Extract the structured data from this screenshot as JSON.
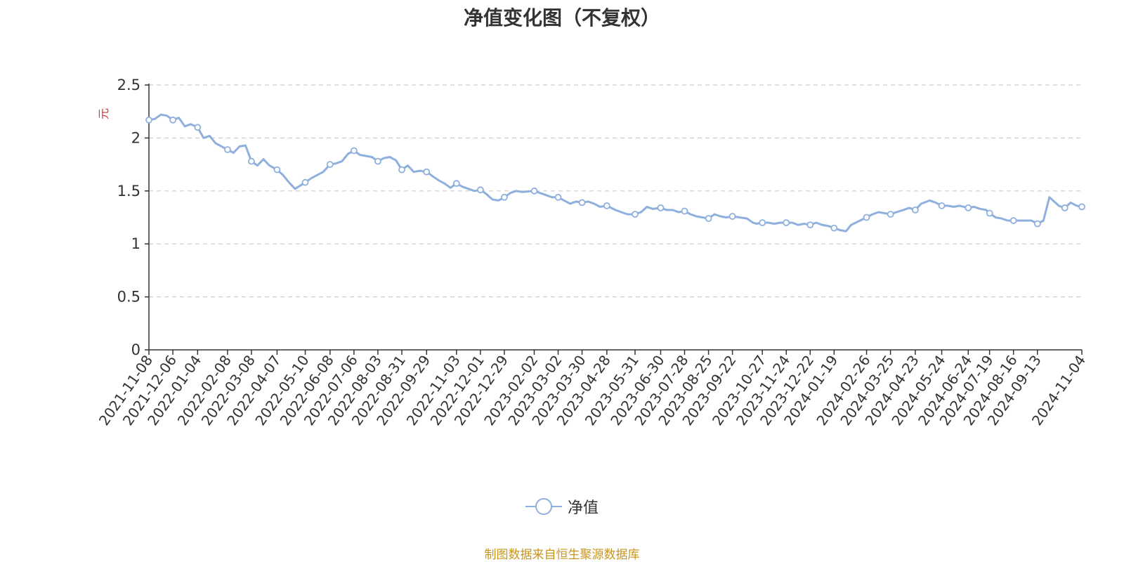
{
  "chart_data": {
    "type": "line",
    "title": "净值变化图（不复权）",
    "ylabel": "元",
    "ylim": [
      0,
      2.5
    ],
    "yticks": [
      "0",
      "0.5",
      "1",
      "1.5",
      "2",
      "2.5"
    ],
    "grid": true,
    "legend_position": "bottom",
    "x_tick_labels": [
      "2021-11-08",
      "2021-12-06",
      "2022-01-04",
      "2022-02-08",
      "2022-03-08",
      "2022-04-07",
      "2022-05-10",
      "2022-06-08",
      "2022-07-06",
      "2022-08-03",
      "2022-08-31",
      "2022-09-29",
      "2022-11-03",
      "2022-12-01",
      "2022-12-29",
      "2023-02-02",
      "2023-03-02",
      "2023-03-30",
      "2023-04-28",
      "2023-05-31",
      "2023-06-30",
      "2023-07-28",
      "2023-08-25",
      "2023-09-22",
      "2023-10-27",
      "2023-11-24",
      "2023-12-22",
      "2024-01-19",
      "2024-02-26",
      "2024-03-25",
      "2024-04-23",
      "2024-05-24",
      "2024-06-24",
      "2024-07-19",
      "2024-08-16",
      "2024-09-13",
      "2024-11-04"
    ],
    "series": [
      {
        "name": "净值",
        "color": "#8fb0dc",
        "x": [
          "2021-11-08",
          "2021-11-15",
          "2021-11-22",
          "2021-11-29",
          "2021-12-06",
          "2021-12-13",
          "2021-12-20",
          "2021-12-27",
          "2022-01-04",
          "2022-01-11",
          "2022-01-18",
          "2022-01-25",
          "2022-02-08",
          "2022-02-15",
          "2022-02-22",
          "2022-03-01",
          "2022-03-08",
          "2022-03-15",
          "2022-03-22",
          "2022-03-29",
          "2022-04-07",
          "2022-04-14",
          "2022-04-21",
          "2022-04-28",
          "2022-05-10",
          "2022-05-17",
          "2022-05-24",
          "2022-05-31",
          "2022-06-08",
          "2022-06-15",
          "2022-06-22",
          "2022-06-29",
          "2022-07-06",
          "2022-07-13",
          "2022-07-20",
          "2022-07-27",
          "2022-08-03",
          "2022-08-10",
          "2022-08-17",
          "2022-08-24",
          "2022-08-31",
          "2022-09-07",
          "2022-09-14",
          "2022-09-21",
          "2022-09-29",
          "2022-10-13",
          "2022-10-20",
          "2022-10-27",
          "2022-11-03",
          "2022-11-10",
          "2022-11-17",
          "2022-11-24",
          "2022-12-01",
          "2022-12-08",
          "2022-12-15",
          "2022-12-22",
          "2022-12-29",
          "2023-01-05",
          "2023-01-12",
          "2023-01-19",
          "2023-02-02",
          "2023-02-09",
          "2023-02-16",
          "2023-02-23",
          "2023-03-02",
          "2023-03-09",
          "2023-03-16",
          "2023-03-23",
          "2023-03-30",
          "2023-04-06",
          "2023-04-13",
          "2023-04-20",
          "2023-04-28",
          "2023-05-08",
          "2023-05-15",
          "2023-05-22",
          "2023-05-31",
          "2023-06-07",
          "2023-06-14",
          "2023-06-21",
          "2023-06-30",
          "2023-07-07",
          "2023-07-14",
          "2023-07-21",
          "2023-07-28",
          "2023-08-04",
          "2023-08-11",
          "2023-08-18",
          "2023-08-25",
          "2023-09-01",
          "2023-09-08",
          "2023-09-15",
          "2023-09-22",
          "2023-10-09",
          "2023-10-16",
          "2023-10-20",
          "2023-10-27",
          "2023-11-03",
          "2023-11-10",
          "2023-11-17",
          "2023-11-24",
          "2023-12-01",
          "2023-12-08",
          "2023-12-15",
          "2023-12-22",
          "2023-12-29",
          "2024-01-05",
          "2024-01-12",
          "2024-01-19",
          "2024-01-26",
          "2024-02-02",
          "2024-02-08",
          "2024-02-26",
          "2024-03-04",
          "2024-03-11",
          "2024-03-18",
          "2024-03-25",
          "2024-04-01",
          "2024-04-09",
          "2024-04-16",
          "2024-04-23",
          "2024-04-30",
          "2024-05-10",
          "2024-05-17",
          "2024-05-24",
          "2024-05-31",
          "2024-06-07",
          "2024-06-14",
          "2024-06-24",
          "2024-07-01",
          "2024-07-08",
          "2024-07-15",
          "2024-07-19",
          "2024-07-26",
          "2024-08-02",
          "2024-08-09",
          "2024-08-16",
          "2024-08-23",
          "2024-08-30",
          "2024-09-06",
          "2024-09-13",
          "2024-09-20",
          "2024-09-27",
          "2024-10-08",
          "2024-10-15",
          "2024-10-22",
          "2024-10-29",
          "2024-11-04"
        ],
        "y": [
          2.17,
          2.18,
          2.22,
          2.21,
          2.17,
          2.19,
          2.11,
          2.13,
          2.1,
          2.0,
          2.02,
          1.95,
          1.89,
          1.86,
          1.92,
          1.93,
          1.78,
          1.74,
          1.8,
          1.74,
          1.7,
          1.65,
          1.58,
          1.52,
          1.58,
          1.62,
          1.65,
          1.68,
          1.75,
          1.76,
          1.78,
          1.85,
          1.88,
          1.84,
          1.83,
          1.82,
          1.78,
          1.81,
          1.82,
          1.79,
          1.7,
          1.74,
          1.68,
          1.69,
          1.68,
          1.6,
          1.57,
          1.53,
          1.57,
          1.54,
          1.52,
          1.5,
          1.51,
          1.47,
          1.42,
          1.41,
          1.44,
          1.48,
          1.5,
          1.49,
          1.5,
          1.48,
          1.46,
          1.44,
          1.44,
          1.41,
          1.38,
          1.4,
          1.39,
          1.4,
          1.38,
          1.35,
          1.36,
          1.32,
          1.3,
          1.28,
          1.28,
          1.3,
          1.35,
          1.33,
          1.34,
          1.32,
          1.32,
          1.3,
          1.31,
          1.28,
          1.26,
          1.25,
          1.24,
          1.28,
          1.26,
          1.25,
          1.26,
          1.24,
          1.2,
          1.19,
          1.2,
          1.2,
          1.19,
          1.2,
          1.2,
          1.2,
          1.18,
          1.19,
          1.18,
          1.2,
          1.18,
          1.17,
          1.15,
          1.13,
          1.12,
          1.18,
          1.25,
          1.28,
          1.3,
          1.29,
          1.28,
          1.3,
          1.32,
          1.34,
          1.32,
          1.38,
          1.41,
          1.39,
          1.36,
          1.36,
          1.35,
          1.36,
          1.34,
          1.35,
          1.33,
          1.32,
          1.29,
          1.25,
          1.24,
          1.22,
          1.22,
          1.22,
          1.22,
          1.22,
          1.19,
          1.22,
          1.44,
          1.36,
          1.34,
          1.39,
          1.36,
          1.35
        ]
      }
    ]
  },
  "source_note": "制图数据来自恒生聚源数据库"
}
